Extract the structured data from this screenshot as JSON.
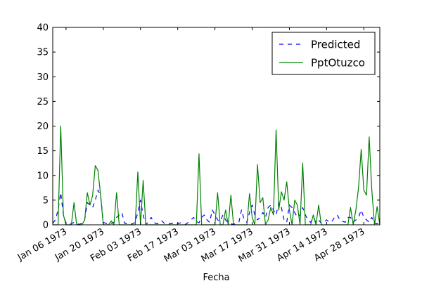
{
  "chart_data": {
    "type": "line",
    "title": "",
    "xlabel": "Fecha",
    "ylabel": "",
    "ylim": [
      0,
      40
    ],
    "yticks": [
      0,
      5,
      10,
      15,
      20,
      25,
      30,
      35,
      40
    ],
    "xrange": [
      "1973-01-01",
      "1973-05-04"
    ],
    "xticks": [
      {
        "date": "1973-01-06",
        "label": "Jan 06 1973"
      },
      {
        "date": "1973-01-20",
        "label": "Jan 20 1973"
      },
      {
        "date": "1973-02-03",
        "label": "Feb 03 1973"
      },
      {
        "date": "1973-02-17",
        "label": "Feb 17 1973"
      },
      {
        "date": "1973-03-03",
        "label": "Mar 03 1973"
      },
      {
        "date": "1973-03-17",
        "label": "Mar 17 1973"
      },
      {
        "date": "1973-03-31",
        "label": "Mar 31 1973"
      },
      {
        "date": "1973-04-14",
        "label": "Apr 14 1973"
      },
      {
        "date": "1973-04-28",
        "label": "Apr 28 1973"
      }
    ],
    "grid": false,
    "legend_position": "top-right",
    "series": [
      {
        "name": "Predicted",
        "color": "#0000ff",
        "style": "dashed",
        "x": [
          "1973-01-01",
          "1973-01-02",
          "1973-01-03",
          "1973-01-04",
          "1973-01-05",
          "1973-01-06",
          "1973-01-07",
          "1973-01-08",
          "1973-01-09",
          "1973-01-10",
          "1973-01-11",
          "1973-01-12",
          "1973-01-13",
          "1973-01-14",
          "1973-01-15",
          "1973-01-16",
          "1973-01-17",
          "1973-01-18",
          "1973-01-19",
          "1973-01-20",
          "1973-01-21",
          "1973-01-22",
          "1973-01-23",
          "1973-01-24",
          "1973-01-25",
          "1973-01-26",
          "1973-01-27",
          "1973-01-28",
          "1973-01-29",
          "1973-01-30",
          "1973-01-31",
          "1973-02-01",
          "1973-02-02",
          "1973-02-03",
          "1973-02-04",
          "1973-02-05",
          "1973-02-06",
          "1973-02-07",
          "1973-02-08",
          "1973-02-09",
          "1973-02-10",
          "1973-02-11",
          "1973-02-12",
          "1973-02-13",
          "1973-02-14",
          "1973-02-15",
          "1973-02-16",
          "1973-02-17",
          "1973-02-18",
          "1973-02-19",
          "1973-02-20",
          "1973-02-21",
          "1973-02-22",
          "1973-02-23",
          "1973-02-24",
          "1973-02-25",
          "1973-02-26",
          "1973-02-27",
          "1973-02-28",
          "1973-03-01",
          "1973-03-02",
          "1973-03-03",
          "1973-03-04",
          "1973-03-05",
          "1973-03-06",
          "1973-03-07",
          "1973-03-08",
          "1973-03-09",
          "1973-03-10",
          "1973-03-11",
          "1973-03-12",
          "1973-03-13",
          "1973-03-14",
          "1973-03-15",
          "1973-03-16",
          "1973-03-17",
          "1973-03-18",
          "1973-03-19",
          "1973-03-20",
          "1973-03-21",
          "1973-03-22",
          "1973-03-23",
          "1973-03-24",
          "1973-03-25",
          "1973-03-26",
          "1973-03-27",
          "1973-03-28",
          "1973-03-29",
          "1973-03-30",
          "1973-03-31",
          "1973-04-01",
          "1973-04-02",
          "1973-04-03",
          "1973-04-04",
          "1973-04-05",
          "1973-04-06",
          "1973-04-07",
          "1973-04-08",
          "1973-04-09",
          "1973-04-10",
          "1973-04-11",
          "1973-04-12",
          "1973-04-13",
          "1973-04-14",
          "1973-04-15",
          "1973-04-16",
          "1973-04-17",
          "1973-04-18",
          "1973-04-19",
          "1973-04-20",
          "1973-04-21",
          "1973-04-22",
          "1973-04-23",
          "1973-04-24",
          "1973-04-25",
          "1973-04-26",
          "1973-04-27",
          "1973-04-28",
          "1973-04-29",
          "1973-04-30",
          "1973-05-01",
          "1973-05-02",
          "1973-05-03",
          "1973-05-04"
        ],
        "values": [
          0.3,
          1,
          3,
          6.5,
          2,
          0.3,
          0.1,
          0.2,
          0.5,
          0.2,
          0.1,
          0.3,
          1,
          4.5,
          4,
          3.5,
          5,
          7,
          6,
          0.5,
          0.3,
          0.1,
          0.3,
          0.5,
          1.5,
          2,
          2.5,
          0.3,
          0.2,
          0.1,
          0.2,
          0.5,
          2.5,
          5,
          2,
          0.1,
          0.5,
          1.5,
          0.5,
          0.2,
          0.3,
          0.8,
          0.3,
          0.1,
          0.2,
          0.3,
          0.1,
          0.2,
          0.4,
          0.3,
          0.1,
          0.5,
          1,
          1.5,
          0.7,
          0.4,
          1.5,
          2,
          1,
          0.5,
          3,
          2,
          1,
          0.7,
          2,
          1,
          0.4,
          0.2,
          0.1,
          0.3,
          0.5,
          3,
          1,
          0.5,
          2.5,
          4,
          2,
          1,
          1.5,
          2.5,
          1.5,
          3.5,
          4,
          3,
          2,
          4.5,
          3.5,
          1,
          0.5,
          4,
          3.5,
          2.5,
          1.5,
          2,
          3.5,
          2,
          1,
          0.5,
          1.5,
          0.5,
          1,
          0.3,
          0.5,
          1,
          0.5,
          0.7,
          1.5,
          2,
          1,
          0.7,
          0.5,
          1.5,
          1.5,
          0.5,
          1,
          1.5,
          3,
          1.5,
          1,
          0.5,
          1.5,
          0.3,
          0.2,
          0.5
        ]
      },
      {
        "name": "PptOtuzco",
        "color": "#008000",
        "style": "solid",
        "x": [
          "1973-01-01",
          "1973-01-02",
          "1973-01-03",
          "1973-01-04",
          "1973-01-05",
          "1973-01-06",
          "1973-01-07",
          "1973-01-08",
          "1973-01-09",
          "1973-01-10",
          "1973-01-11",
          "1973-01-12",
          "1973-01-13",
          "1973-01-14",
          "1973-01-15",
          "1973-01-16",
          "1973-01-17",
          "1973-01-18",
          "1973-01-19",
          "1973-01-20",
          "1973-01-21",
          "1973-01-22",
          "1973-01-23",
          "1973-01-24",
          "1973-01-25",
          "1973-01-26",
          "1973-01-27",
          "1973-01-28",
          "1973-01-29",
          "1973-01-30",
          "1973-01-31",
          "1973-02-01",
          "1973-02-02",
          "1973-02-03",
          "1973-02-04",
          "1973-02-05",
          "1973-02-06",
          "1973-02-07",
          "1973-02-08",
          "1973-02-09",
          "1973-02-10",
          "1973-02-11",
          "1973-02-12",
          "1973-02-13",
          "1973-02-14",
          "1973-02-15",
          "1973-02-16",
          "1973-02-17",
          "1973-02-18",
          "1973-02-19",
          "1973-02-20",
          "1973-02-21",
          "1973-02-22",
          "1973-02-23",
          "1973-02-24",
          "1973-02-25",
          "1973-02-26",
          "1973-02-27",
          "1973-02-28",
          "1973-03-01",
          "1973-03-02",
          "1973-03-03",
          "1973-03-04",
          "1973-03-05",
          "1973-03-06",
          "1973-03-07",
          "1973-03-08",
          "1973-03-09",
          "1973-03-10",
          "1973-03-11",
          "1973-03-12",
          "1973-03-13",
          "1973-03-14",
          "1973-03-15",
          "1973-03-16",
          "1973-03-17",
          "1973-03-18",
          "1973-03-19",
          "1973-03-20",
          "1973-03-21",
          "1973-03-22",
          "1973-03-23",
          "1973-03-24",
          "1973-03-25",
          "1973-03-26",
          "1973-03-27",
          "1973-03-28",
          "1973-03-29",
          "1973-03-30",
          "1973-03-31",
          "1973-04-01",
          "1973-04-02",
          "1973-04-03",
          "1973-04-04",
          "1973-04-05",
          "1973-04-06",
          "1973-04-07",
          "1973-04-08",
          "1973-04-09",
          "1973-04-10",
          "1973-04-11",
          "1973-04-12",
          "1973-04-13",
          "1973-04-14",
          "1973-04-15",
          "1973-04-16",
          "1973-04-17",
          "1973-04-18",
          "1973-04-19",
          "1973-04-20",
          "1973-04-21",
          "1973-04-22",
          "1973-04-23",
          "1973-04-24",
          "1973-04-25",
          "1973-04-26",
          "1973-04-27",
          "1973-04-28",
          "1973-04-29",
          "1973-04-30",
          "1973-05-01",
          "1973-05-02",
          "1973-05-03",
          "1973-05-04"
        ],
        "values": [
          0,
          0,
          0,
          20,
          2,
          0,
          0,
          0,
          4.5,
          0,
          0,
          0,
          1,
          6.5,
          4,
          6,
          12,
          11,
          6,
          0,
          0,
          0,
          0.8,
          0,
          6.5,
          0,
          0,
          0,
          0,
          0,
          0,
          0,
          10.7,
          0,
          9,
          0,
          0,
          0,
          0,
          0,
          0,
          0,
          0,
          0,
          0,
          0,
          0,
          0,
          0,
          0,
          0,
          0,
          0,
          0,
          0,
          14.4,
          0,
          0,
          0,
          0,
          0,
          0,
          6.5,
          0,
          0,
          3,
          0,
          6,
          0,
          0,
          0,
          0,
          0,
          0,
          6.3,
          1.5,
          0,
          12.2,
          4.5,
          5.5,
          0,
          1,
          3.5,
          2,
          19.2,
          3,
          6.7,
          5,
          8.7,
          3,
          0,
          5,
          4,
          0,
          12.5,
          0,
          0,
          0,
          2,
          0,
          4,
          0,
          0,
          0,
          0,
          0,
          0,
          0,
          0,
          0,
          0,
          0,
          3.5,
          0,
          3,
          7.5,
          15.3,
          7,
          6,
          17.8,
          7,
          0,
          3.7,
          0
        ]
      }
    ]
  }
}
